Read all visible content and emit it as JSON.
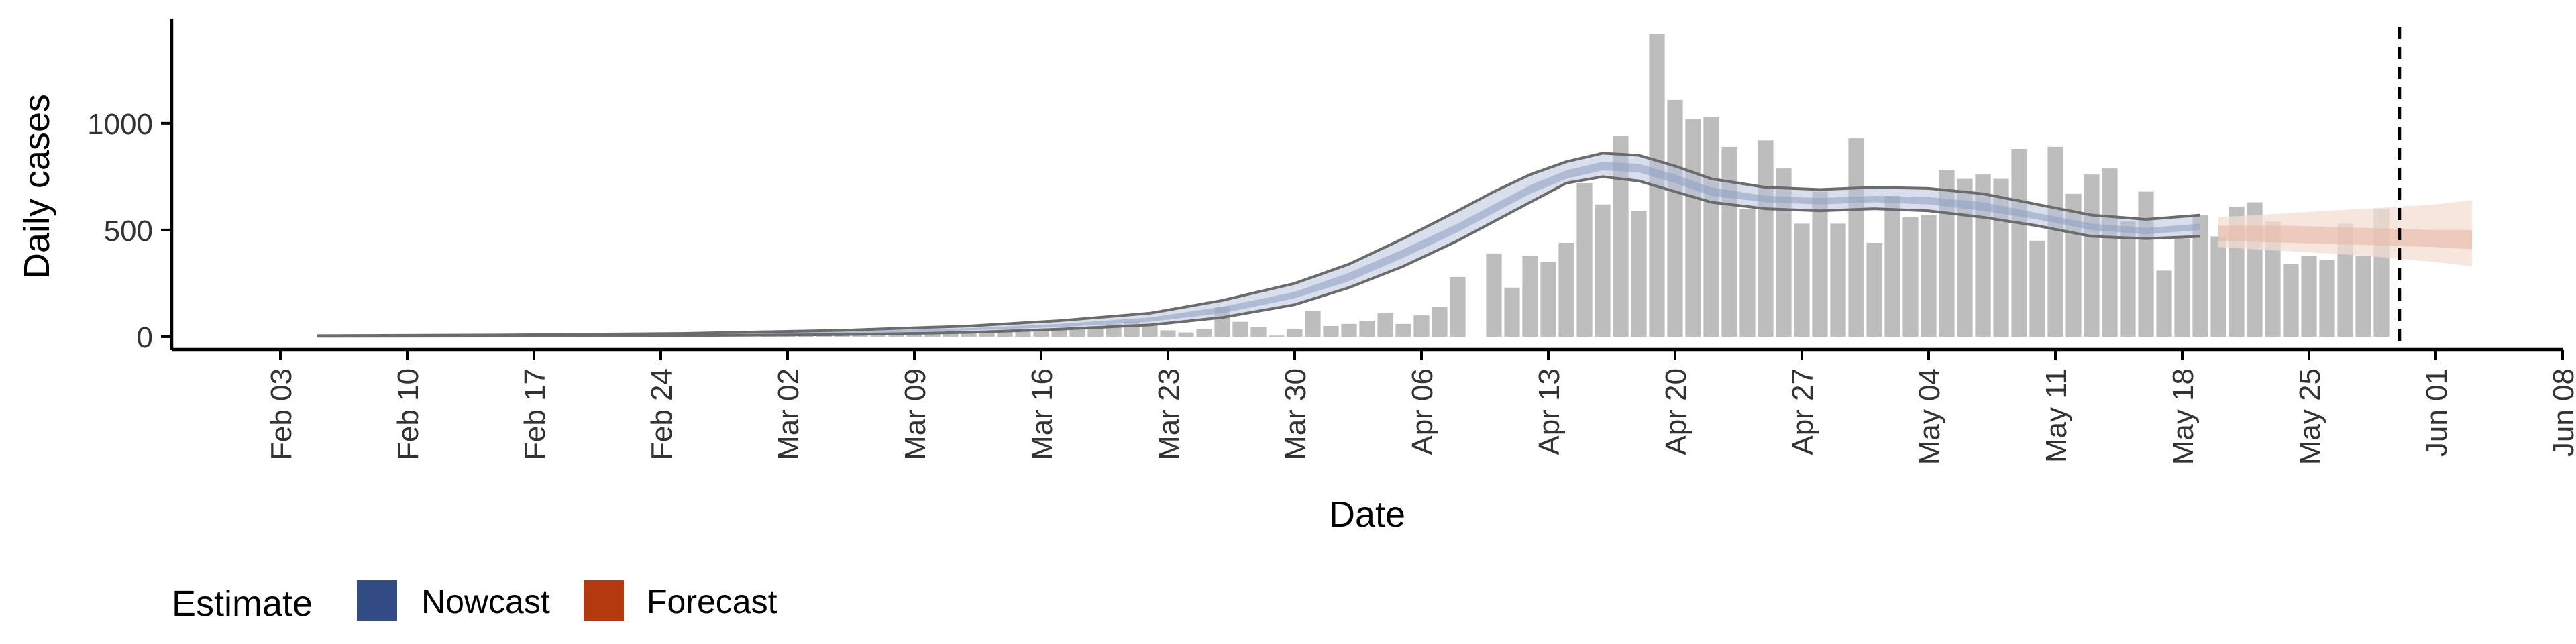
{
  "chart_data": {
    "type": "bar",
    "xlabel": "Date",
    "ylabel": "Daily cases",
    "ylim": [
      -60,
      1490
    ],
    "xlim": [
      "2020-01-28",
      "2020-06-08"
    ],
    "y_ticks": [
      0,
      500,
      1000
    ],
    "x_ticks": [
      {
        "date": "2020-02-03",
        "label": "Feb 03"
      },
      {
        "date": "2020-02-10",
        "label": "Feb 10"
      },
      {
        "date": "2020-02-17",
        "label": "Feb 17"
      },
      {
        "date": "2020-02-24",
        "label": "Feb 24"
      },
      {
        "date": "2020-03-02",
        "label": "Mar 02"
      },
      {
        "date": "2020-03-09",
        "label": "Mar 09"
      },
      {
        "date": "2020-03-16",
        "label": "Mar 16"
      },
      {
        "date": "2020-03-23",
        "label": "Mar 23"
      },
      {
        "date": "2020-03-30",
        "label": "Mar 30"
      },
      {
        "date": "2020-04-06",
        "label": "Apr 06"
      },
      {
        "date": "2020-04-13",
        "label": "Apr 13"
      },
      {
        "date": "2020-04-20",
        "label": "Apr 20"
      },
      {
        "date": "2020-04-27",
        "label": "Apr 27"
      },
      {
        "date": "2020-05-04",
        "label": "May 04"
      },
      {
        "date": "2020-05-11",
        "label": "May 11"
      },
      {
        "date": "2020-05-18",
        "label": "May 18"
      },
      {
        "date": "2020-05-25",
        "label": "May 25"
      },
      {
        "date": "2020-06-01",
        "label": "Jun 01"
      },
      {
        "date": "2020-06-08",
        "label": "Jun 08"
      }
    ],
    "bars_start_date": "2020-03-01",
    "bar_values": [
      3,
      4,
      5,
      6,
      7,
      8,
      10,
      12,
      14,
      15,
      16,
      18,
      20,
      22,
      25,
      28,
      32,
      40,
      50,
      60,
      70,
      55,
      30,
      20,
      35,
      140,
      70,
      45,
      5,
      35,
      120,
      50,
      60,
      75,
      110,
      60,
      100,
      140,
      280,
      0,
      390,
      230,
      380,
      350,
      440,
      720,
      620,
      940,
      590,
      1420,
      1110,
      1020,
      1030,
      890,
      600,
      920,
      790,
      530,
      680,
      530,
      930,
      440,
      660,
      560,
      570,
      780,
      740,
      760,
      740,
      880,
      450,
      890,
      670,
      760,
      790,
      540,
      680,
      310,
      460,
      570,
      470,
      610,
      630,
      540,
      340,
      380,
      360,
      530,
      380,
      600
    ],
    "vline_date": "2020-05-30",
    "nowcast": {
      "dates": [
        "2020-02-05",
        "2020-02-15",
        "2020-02-25",
        "2020-03-05",
        "2020-03-12",
        "2020-03-17",
        "2020-03-22",
        "2020-03-26",
        "2020-03-30",
        "2020-04-02",
        "2020-04-05",
        "2020-04-08",
        "2020-04-10",
        "2020-04-12",
        "2020-04-14",
        "2020-04-16",
        "2020-04-18",
        "2020-04-20",
        "2020-04-22",
        "2020-04-25",
        "2020-04-28",
        "2020-05-01",
        "2020-05-04",
        "2020-05-07",
        "2020-05-10",
        "2020-05-13",
        "2020-05-16",
        "2020-05-19"
      ],
      "upper": [
        5,
        8,
        15,
        30,
        50,
        75,
        110,
        170,
        250,
        340,
        460,
        590,
        680,
        760,
        820,
        860,
        850,
        800,
        740,
        700,
        690,
        700,
        695,
        670,
        620,
        570,
        550,
        570
      ],
      "lower": [
        2,
        3,
        5,
        10,
        20,
        35,
        55,
        90,
        150,
        230,
        330,
        450,
        540,
        630,
        720,
        750,
        730,
        680,
        630,
        600,
        590,
        600,
        590,
        560,
        520,
        470,
        460,
        470
      ],
      "band_upper": [
        4,
        6,
        12,
        25,
        40,
        60,
        90,
        140,
        210,
        300,
        410,
        530,
        620,
        710,
        780,
        820,
        810,
        760,
        700,
        660,
        650,
        660,
        655,
        630,
        580,
        530,
        510,
        530
      ],
      "band_lower": [
        2,
        4,
        8,
        15,
        30,
        45,
        70,
        110,
        180,
        260,
        370,
        490,
        580,
        670,
        740,
        780,
        770,
        720,
        660,
        630,
        620,
        630,
        620,
        590,
        550,
        500,
        480,
        500
      ]
    },
    "forecast": {
      "dates": [
        "2020-05-20",
        "2020-05-24",
        "2020-05-28",
        "2020-06-01",
        "2020-06-03"
      ],
      "outer_upper": [
        560,
        580,
        600,
        620,
        640
      ],
      "outer_lower": [
        420,
        400,
        380,
        350,
        330
      ],
      "inner_upper": [
        520,
        520,
        510,
        500,
        500
      ],
      "inner_lower": [
        450,
        440,
        430,
        420,
        410
      ]
    }
  },
  "legend": {
    "title": "Estimate",
    "items": [
      {
        "label": "Nowcast",
        "color": "#324c84"
      },
      {
        "label": "Forecast",
        "color": "#b33a0e"
      }
    ]
  },
  "colors": {
    "bar": "#bdbdbd",
    "nowcast_band": "#b8c3da",
    "nowcast_band_inner": "#8e9fc2",
    "nowcast_line": "#6b6b6b",
    "forecast_outer": "#f3ddd2",
    "forecast_inner": "#e7b8a5"
  }
}
